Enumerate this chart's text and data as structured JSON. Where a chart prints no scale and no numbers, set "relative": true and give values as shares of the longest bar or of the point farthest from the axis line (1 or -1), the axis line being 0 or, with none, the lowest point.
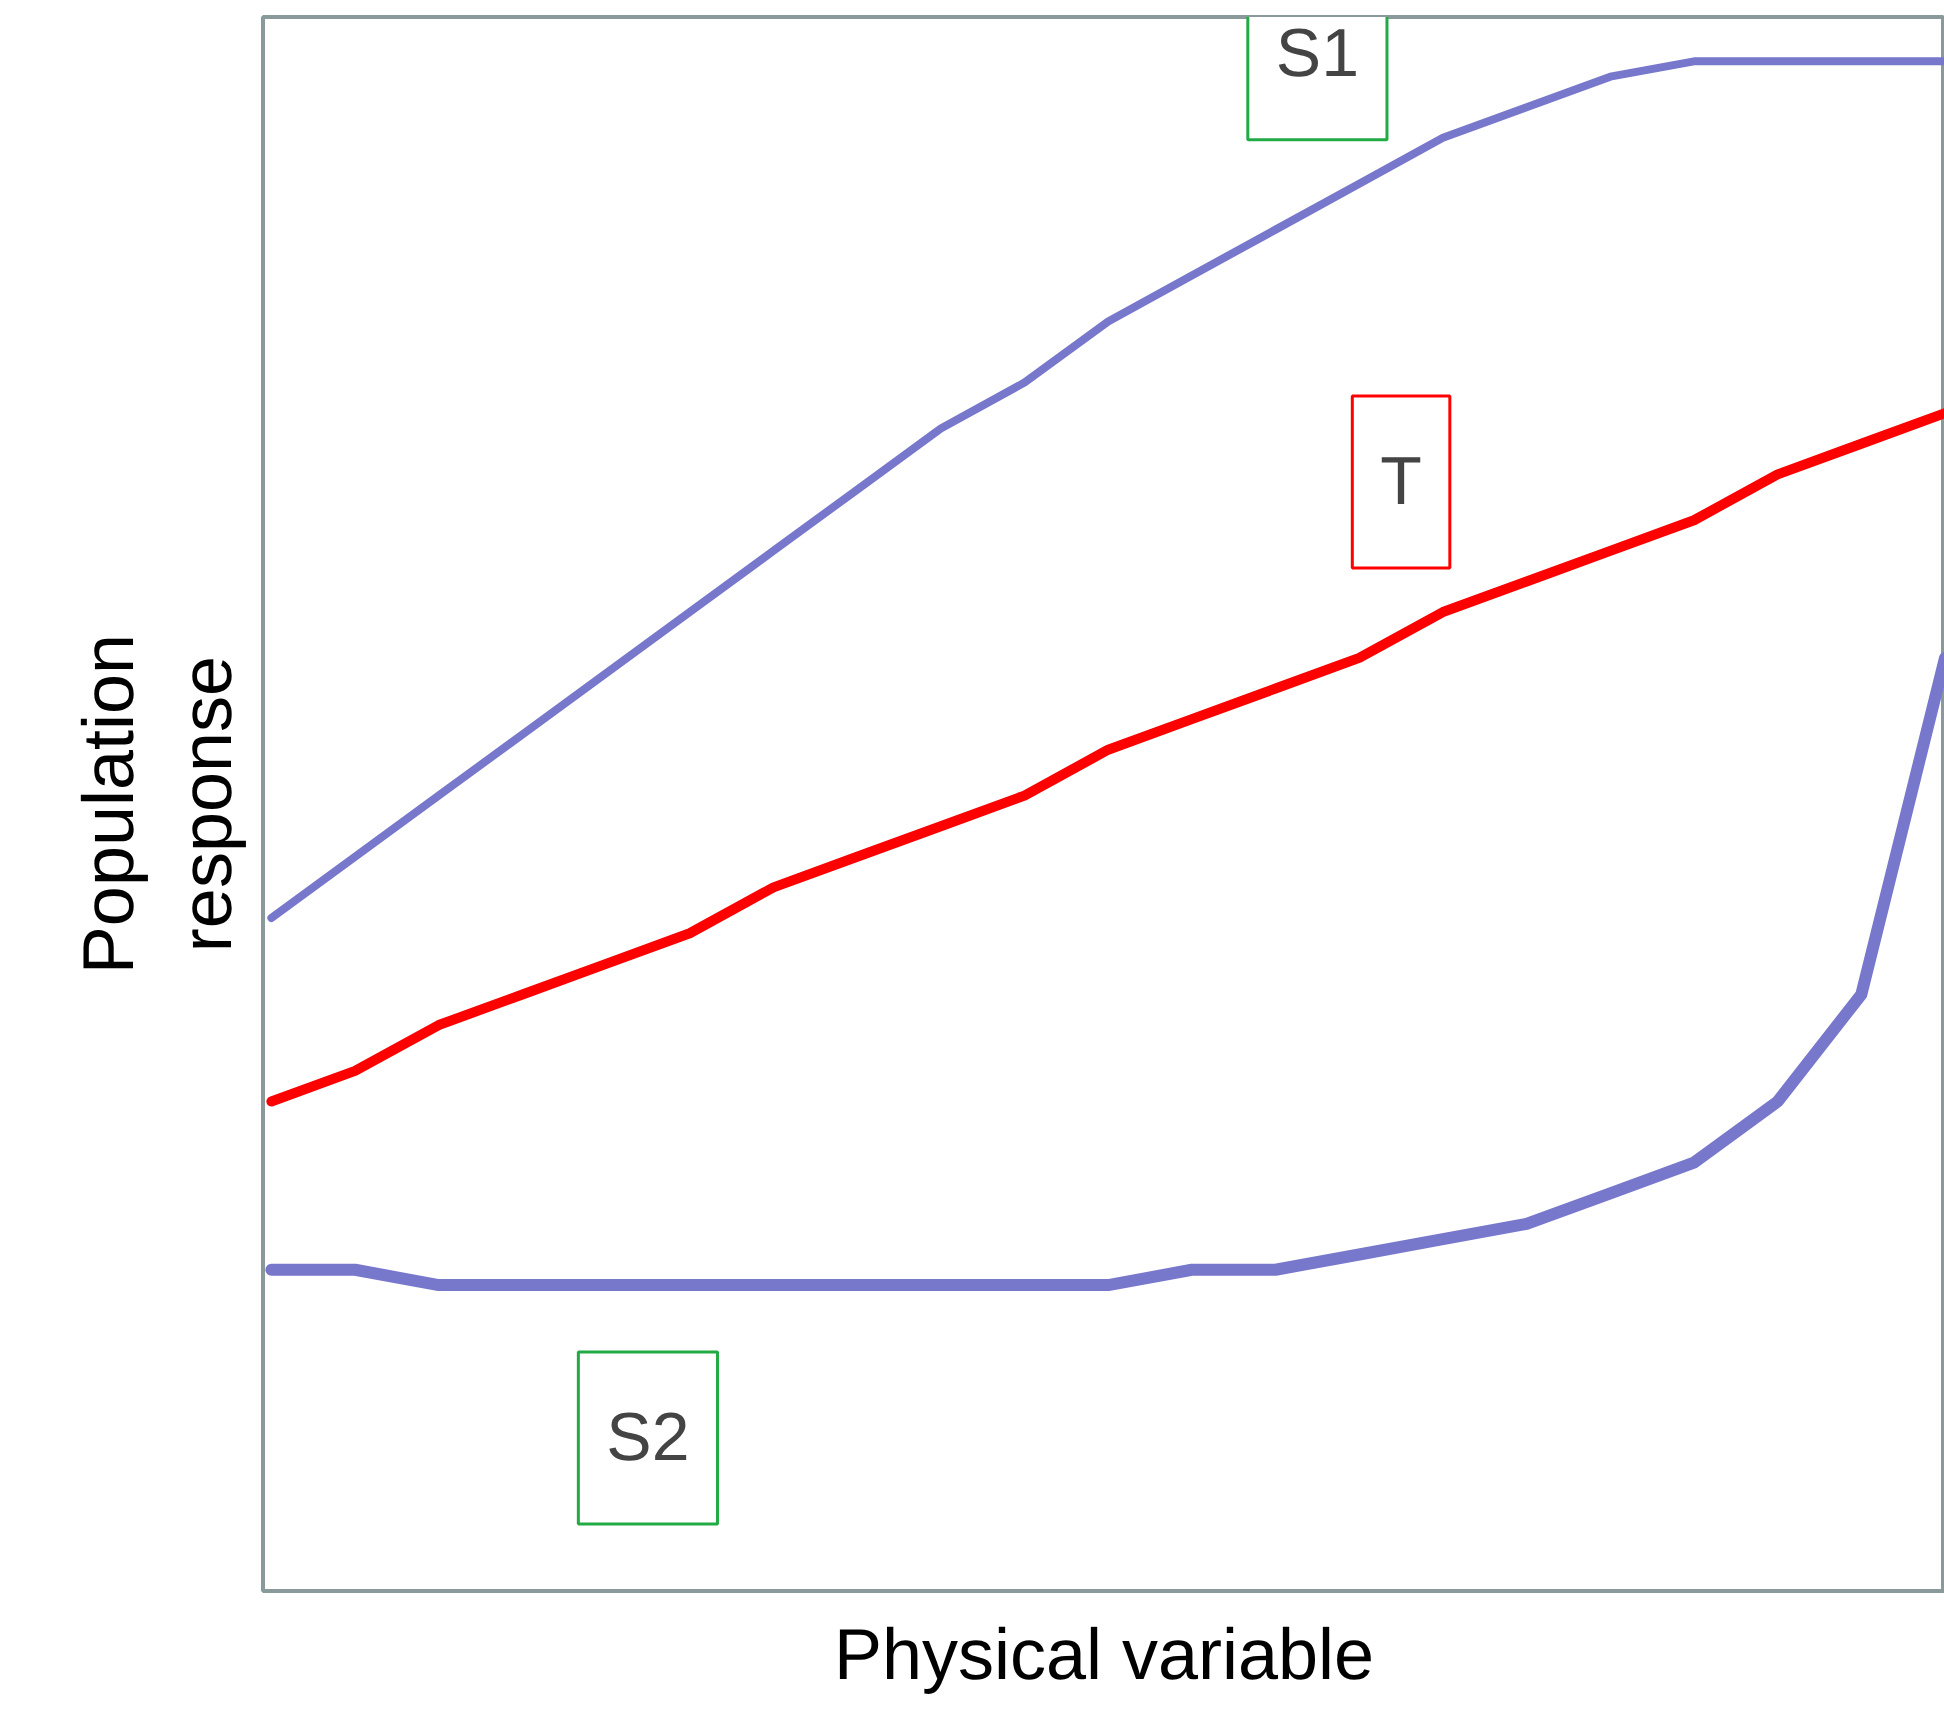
{
  "chart_data": {
    "type": "line",
    "relative": true,
    "xlabel": "Physical variable",
    "ylabel": "Population response",
    "grid": false,
    "legend": false,
    "marker": "none",
    "line_style": "solid",
    "categories": [
      null,
      null,
      null,
      null,
      null,
      null,
      null,
      null,
      null,
      null,
      null,
      null,
      null,
      null,
      null,
      null,
      null,
      null,
      null,
      null,
      null
    ],
    "series": [
      {
        "name": "S1",
        "color": "#7777cc",
        "values": [
          0.44,
          0.48,
          0.52,
          0.56,
          0.6,
          0.64,
          0.68,
          0.72,
          0.76,
          0.79,
          0.83,
          0.86,
          0.89,
          0.92,
          0.95,
          0.97,
          0.99,
          1.0,
          1.0,
          1.0,
          1.0
        ]
      },
      {
        "name": "T",
        "color": "#ff0000",
        "values": [
          0.32,
          0.34,
          0.37,
          0.39,
          0.41,
          0.43,
          0.46,
          0.48,
          0.5,
          0.52,
          0.55,
          0.57,
          0.59,
          0.61,
          0.64,
          0.66,
          0.68,
          0.7,
          0.73,
          0.75,
          0.77
        ]
      },
      {
        "name": "S2",
        "color": "#7777cc",
        "values": [
          0.21,
          0.21,
          0.2,
          0.2,
          0.2,
          0.2,
          0.2,
          0.2,
          0.2,
          0.2,
          0.2,
          0.21,
          0.21,
          0.22,
          0.23,
          0.24,
          0.26,
          0.28,
          0.32,
          0.39,
          0.61
        ]
      }
    ]
  }
}
